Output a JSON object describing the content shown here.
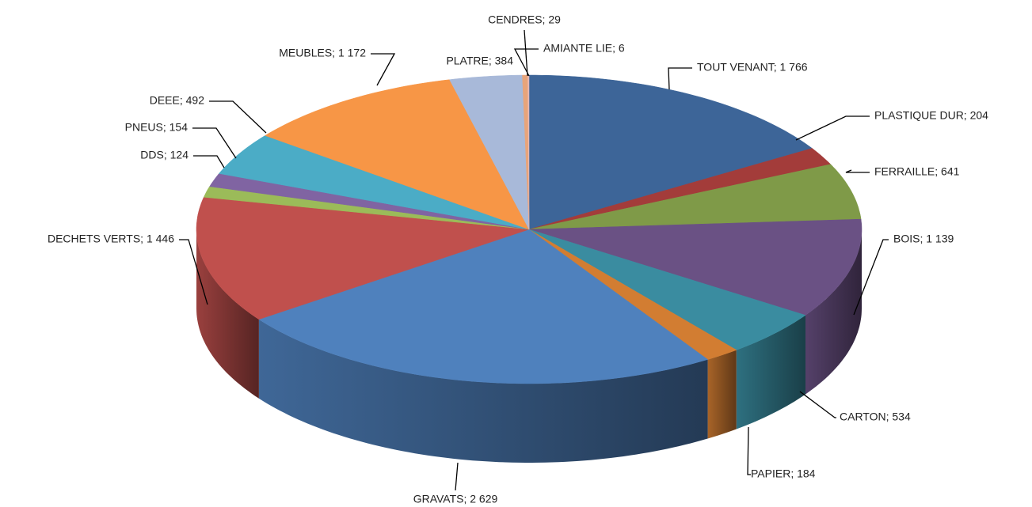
{
  "chart_data": {
    "type": "pie",
    "three_d": true,
    "values": [
      1766,
      204,
      641,
      1139,
      534,
      184,
      2629,
      1446,
      124,
      154,
      492,
      1172,
      384,
      29,
      6
    ],
    "value_labels": [
      "TOUT VENANT; 1 766",
      "PLASTIQUE DUR; 204",
      "FERRAILLE; 641",
      "BOIS; 1 139",
      "CARTON; 534",
      "PAPIER; 184",
      "GRAVATS; 2 629",
      "DECHETS VERTS; 1 446",
      "DDS; 124",
      "PNEUS; 154",
      "DEEE; 492",
      "MEUBLES; 1 172",
      "PLATRE; 384",
      "CENDRES; 29",
      "AMIANTE LIE; 6"
    ],
    "colors": [
      "#3d6598",
      "#a33c3a",
      "#7f9a48",
      "#6a5184",
      "#3a8ca0",
      "#d27d32",
      "#4f81bd",
      "#c0504d",
      "#9bbb59",
      "#8064a2",
      "#4bacc6",
      "#f79646",
      "#a8b9d9",
      "#e8a47a",
      "#e6b9b8"
    ]
  }
}
